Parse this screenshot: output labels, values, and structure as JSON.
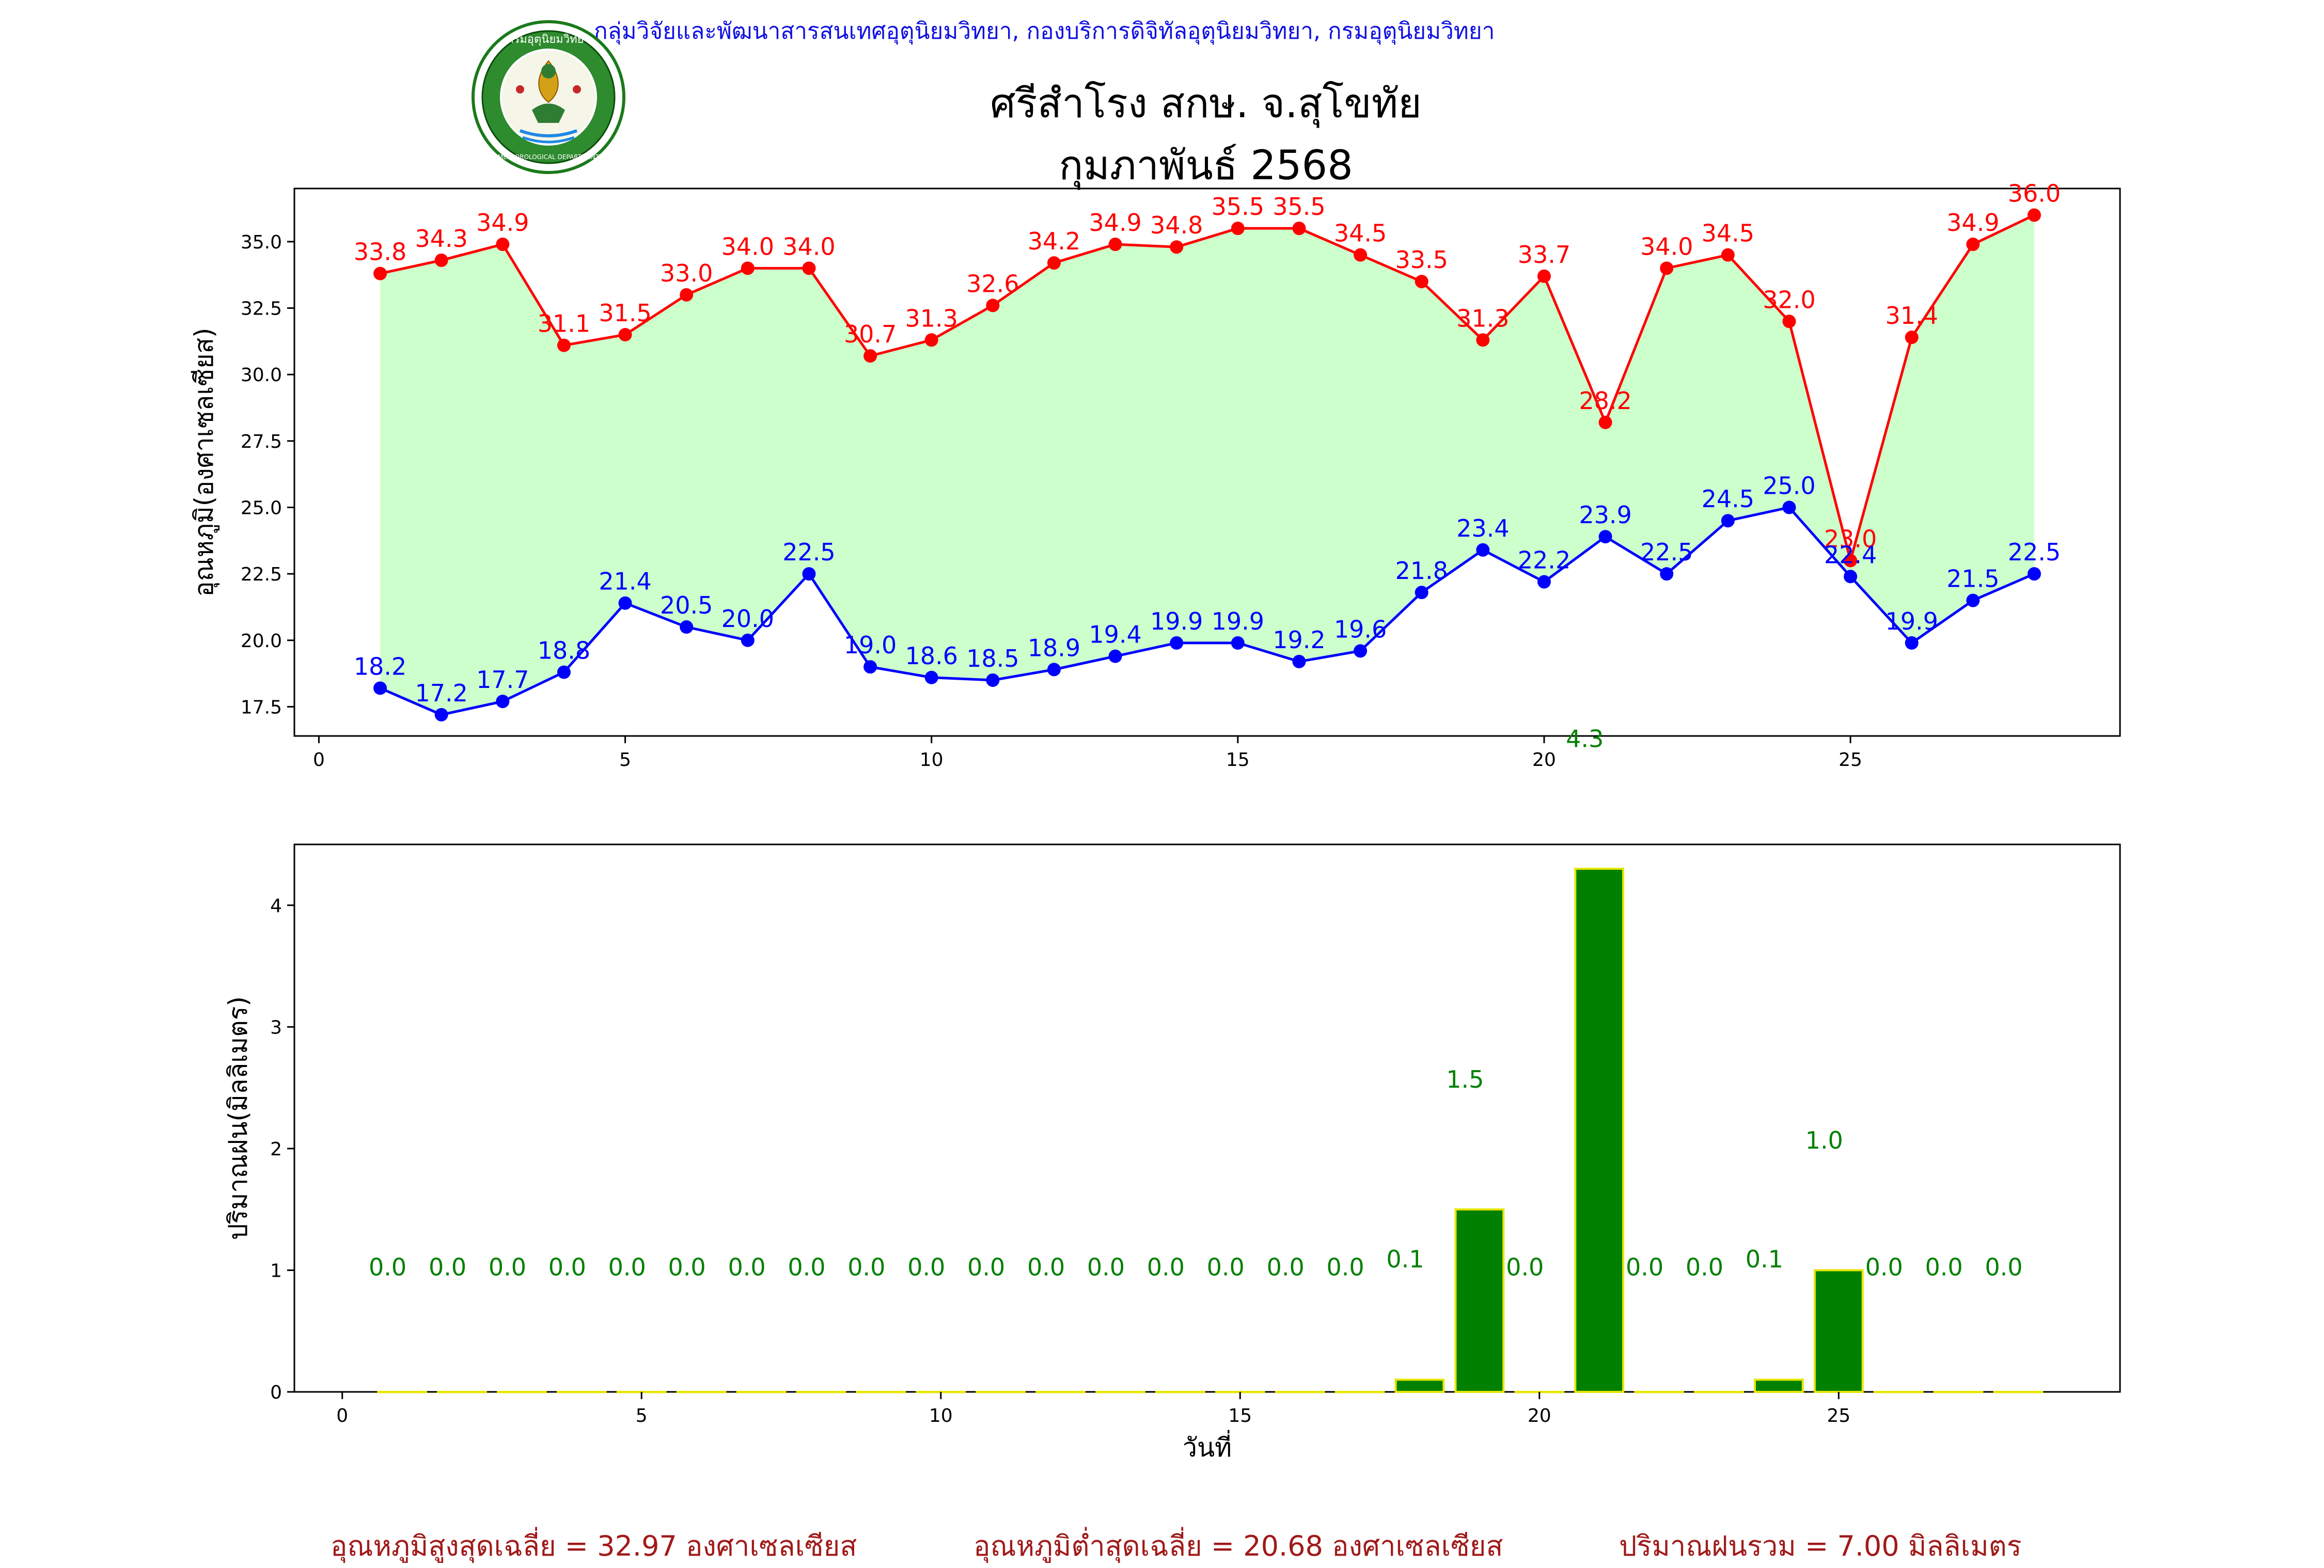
{
  "header": {
    "org_line": "กลุ่มวิจัยและพัฒนาสารสนเทศอุตุนิยมวิทยา, กองบริการดิจิทัลอุตุนิยมวิทยา, กรมอุตุนิยมวิทยา",
    "title": "ศรีสำโรง สกษ. จ.สุโขทัย",
    "subtitle": "กุมภาพันธ์ 2568",
    "logo_text": "กรมอุตุนิยมวิทยา",
    "logo_text_en": "METEOROLOGICAL DEPARTMENT"
  },
  "footer": {
    "avg_max": "อุณหภูมิสูงสุดเฉลี่ย = 32.97 องศาเซลเซียส",
    "avg_min": "อุณหภูมิต่ำสุดเฉลี่ย = 20.68 องศาเซลเซียส",
    "total_rain": "ปริมาณฝนรวม = 7.00 มิลลิเมตร"
  },
  "colors": {
    "max_line": "#ff0000",
    "min_line": "#0000ff",
    "fill": "#ccffcc",
    "rain_bar": "#008000",
    "rain_edge": "#e6e600",
    "rain_label": "#008000"
  },
  "chart_data": [
    {
      "type": "line",
      "ylabel": "อุณหภูมิ(องศาเซลเซียส)",
      "xlabel": "",
      "xlim": [
        -0.4,
        29.4
      ],
      "ylim": [
        16.4,
        37.0
      ],
      "xticks": [
        0,
        5,
        10,
        15,
        20,
        25
      ],
      "yticks": [
        17.5,
        20.0,
        22.5,
        25.0,
        27.5,
        30.0,
        32.5,
        35.0
      ],
      "x": [
        1,
        2,
        3,
        4,
        5,
        6,
        7,
        8,
        9,
        10,
        11,
        12,
        13,
        14,
        15,
        16,
        17,
        18,
        19,
        20,
        21,
        22,
        23,
        24,
        25,
        26,
        27,
        28
      ],
      "series": [
        {
          "role": "max",
          "values": [
            33.8,
            34.3,
            34.9,
            31.1,
            31.5,
            33.0,
            34.0,
            34.0,
            30.7,
            31.3,
            32.6,
            34.2,
            34.9,
            34.8,
            35.5,
            35.5,
            34.5,
            33.5,
            31.3,
            33.7,
            28.2,
            34.0,
            34.5,
            32.0,
            23.0,
            31.4,
            34.9,
            36.0
          ]
        },
        {
          "role": "min",
          "values": [
            18.2,
            17.2,
            17.7,
            18.8,
            21.4,
            20.5,
            20.0,
            22.5,
            19.0,
            18.6,
            18.5,
            18.9,
            19.4,
            19.9,
            19.9,
            19.2,
            19.6,
            21.8,
            23.4,
            22.2,
            23.9,
            22.5,
            24.5,
            25.0,
            22.4,
            19.9,
            21.5,
            22.5
          ]
        }
      ],
      "fill_between": "min-max",
      "grid": false
    },
    {
      "type": "bar",
      "ylabel": "ปริมาณฝน(มิลลิเมตร)",
      "xlabel": "วันที่",
      "xlim": [
        -0.8,
        29.7
      ],
      "ylim": [
        0,
        4.5
      ],
      "xticks": [
        0,
        5,
        10,
        15,
        20,
        25
      ],
      "yticks": [
        0,
        1,
        2,
        3,
        4
      ],
      "x": [
        1,
        2,
        3,
        4,
        5,
        6,
        7,
        8,
        9,
        10,
        11,
        12,
        13,
        14,
        15,
        16,
        17,
        18,
        19,
        20,
        21,
        22,
        23,
        24,
        25,
        26,
        27,
        28
      ],
      "values": [
        0.0,
        0.0,
        0.0,
        0.0,
        0.0,
        0.0,
        0.0,
        0.0,
        0.0,
        0.0,
        0.0,
        0.0,
        0.0,
        0.0,
        0.0,
        0.0,
        0.0,
        0.1,
        1.5,
        0.0,
        4.3,
        0.0,
        0.0,
        0.1,
        1.0,
        0.0,
        0.0,
        0.0
      ],
      "grid": false
    }
  ]
}
